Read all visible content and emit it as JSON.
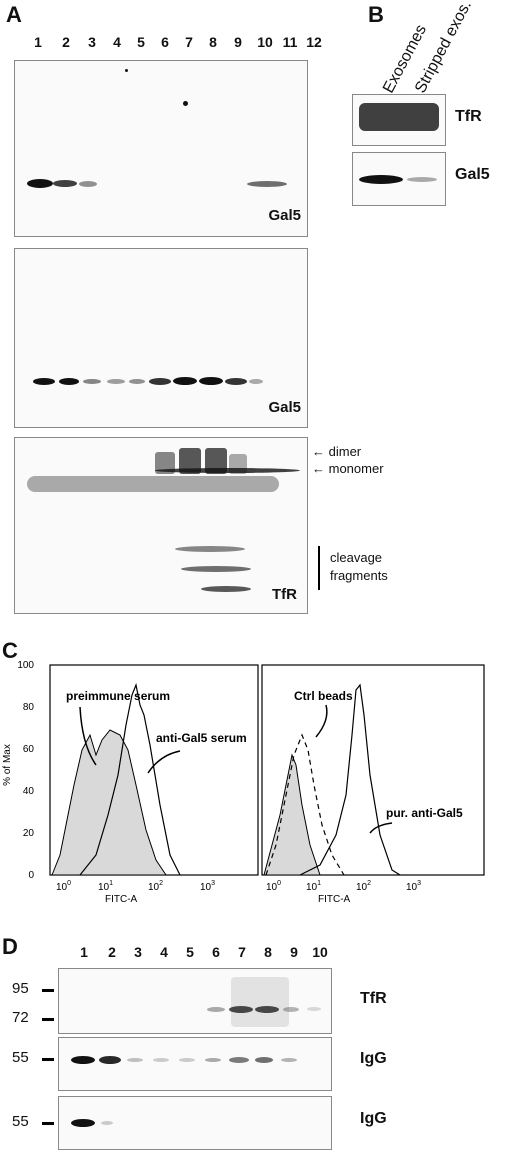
{
  "panels": {
    "a": {
      "letter": "A"
    },
    "b": {
      "letter": "B"
    },
    "c": {
      "letter": "C"
    },
    "d": {
      "letter": "D"
    }
  },
  "panel_a": {
    "lanes": [
      "1",
      "2",
      "3",
      "4",
      "5",
      "6",
      "7",
      "8",
      "9",
      "10",
      "11",
      "12"
    ],
    "blot1_label": "Gal5",
    "blot2_label": "Gal5",
    "blot3_label": "TfR",
    "dimer": "dimer",
    "monomer": "monomer",
    "cleavage_line1": "cleavage",
    "cleavage_line2": "fragments"
  },
  "panel_b": {
    "col1": "Exosomes",
    "col2": "Stripped exos.",
    "row1": "TfR",
    "row2": "Gal5"
  },
  "panel_c": {
    "ylabel": "% of Max",
    "xlabel": "FITC-A",
    "yticks": [
      "0",
      "20",
      "40",
      "60",
      "80",
      "100"
    ],
    "left_ann1": "preimmune serum",
    "left_ann2": "anti-Gal5 serum",
    "right_ann1": "Ctrl beads",
    "right_ann2": "pur. anti-Gal5"
  },
  "panel_d": {
    "lanes": [
      "1",
      "2",
      "3",
      "4",
      "5",
      "6",
      "7",
      "8",
      "9",
      "10"
    ],
    "mw": [
      "95",
      "72",
      "55",
      "55"
    ],
    "row1": "TfR",
    "row2": "IgG",
    "row3": "IgG"
  }
}
